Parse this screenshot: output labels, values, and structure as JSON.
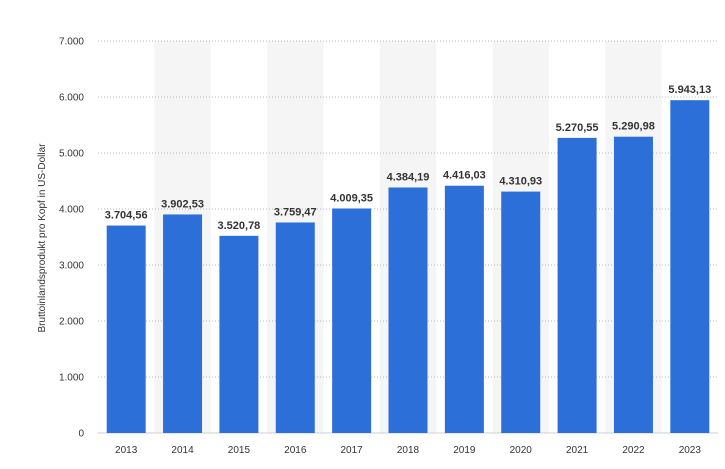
{
  "chart_data": {
    "type": "bar",
    "title": "",
    "xlabel": "",
    "ylabel": "Bruttoinlandsprodukt pro Kopf in US-Dollar",
    "ylim": [
      0,
      7000
    ],
    "yticks": [
      0,
      1000,
      2000,
      3000,
      4000,
      5000,
      6000,
      7000
    ],
    "ytick_labels": [
      "0",
      "1.000",
      "2.000",
      "3.000",
      "4.000",
      "5.000",
      "6.000",
      "7.000"
    ],
    "categories": [
      "2013",
      "2014",
      "2015",
      "2016",
      "2017",
      "2018",
      "2019",
      "2020",
      "2021",
      "2022",
      "2023"
    ],
    "values": [
      3704.56,
      3902.53,
      3520.78,
      3759.47,
      4009.35,
      4384.19,
      4416.03,
      4310.93,
      5270.55,
      5290.98,
      5943.13
    ],
    "value_labels": [
      "3.704,56",
      "3.902,53",
      "3.520,78",
      "3.759,47",
      "4.009,35",
      "4.384,19",
      "4.416,03",
      "4.310,93",
      "5.270,55",
      "5.290,98",
      "5.943,13"
    ],
    "bar_color": "#2c6fd9",
    "band_color": "#f5f5f5",
    "grid": true,
    "legend": "none"
  }
}
